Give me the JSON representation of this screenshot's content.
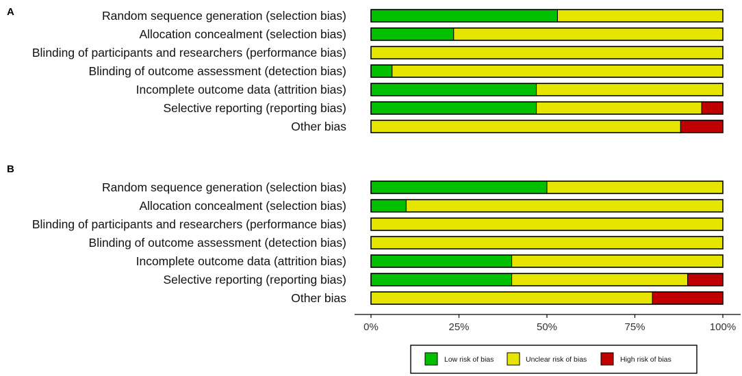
{
  "chart_data": {
    "type": "bar",
    "stacked": true,
    "orientation": "horizontal",
    "xlim": [
      0,
      100
    ],
    "x_ticks": [
      "0%",
      "25%",
      "50%",
      "75%",
      "100%"
    ],
    "legend_position": "bottom",
    "legend": [
      {
        "key": "low",
        "label": "Low risk of bias",
        "color": "#00c000"
      },
      {
        "key": "unclear",
        "label": "Unclear risk of bias",
        "color": "#e5e500"
      },
      {
        "key": "high",
        "label": "High risk of bias",
        "color": "#c00000"
      }
    ],
    "panels": [
      {
        "label": "A",
        "categories": [
          "Random sequence generation (selection bias)",
          "Allocation concealment (selection bias)",
          "Blinding of participants and researchers (performance bias)",
          "Blinding of outcome assessment (detection bias)",
          "Incomplete outcome data (attrition bias)",
          "Selective reporting (reporting bias)",
          "Other bias"
        ],
        "series": [
          {
            "name": "Low risk of bias",
            "key": "low",
            "values": [
              53,
              23.5,
              0,
              6,
              47,
              47,
              0
            ]
          },
          {
            "name": "Unclear risk of bias",
            "key": "unclear",
            "values": [
              47,
              76.5,
              100,
              94,
              53,
              47,
              88
            ]
          },
          {
            "name": "High risk of bias",
            "key": "high",
            "values": [
              0,
              0,
              0,
              0,
              0,
              6,
              12
            ]
          }
        ]
      },
      {
        "label": "B",
        "categories": [
          "Random sequence generation (selection bias)",
          "Allocation concealment (selection bias)",
          "Blinding of participants and researchers (performance bias)",
          "Blinding of outcome assessment (detection bias)",
          "Incomplete outcome data (attrition bias)",
          "Selective reporting (reporting bias)",
          "Other bias"
        ],
        "series": [
          {
            "name": "Low risk of bias",
            "key": "low",
            "values": [
              50,
              10,
              0,
              0,
              40,
              40,
              0
            ]
          },
          {
            "name": "Unclear risk of bias",
            "key": "unclear",
            "values": [
              50,
              90,
              100,
              100,
              60,
              50,
              80
            ]
          },
          {
            "name": "High risk of bias",
            "key": "high",
            "values": [
              0,
              0,
              0,
              0,
              0,
              10,
              20
            ]
          }
        ]
      }
    ]
  }
}
